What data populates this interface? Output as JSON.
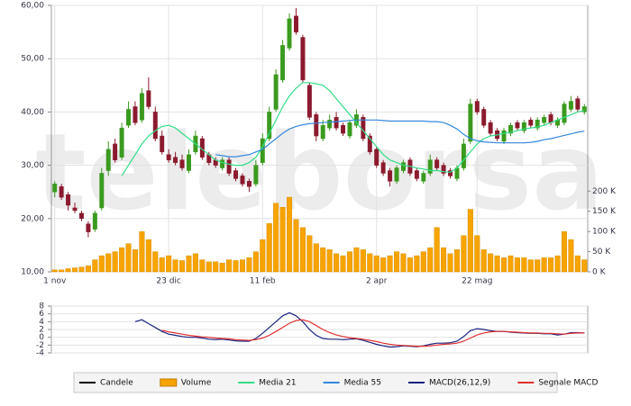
{
  "chart_data": [
    {
      "type": "candlestick",
      "watermark": "teleborsa",
      "grid": true,
      "categories": [
        "1 nov",
        null,
        null,
        null,
        null,
        null,
        null,
        null,
        null,
        null,
        null,
        null,
        null,
        null,
        null,
        null,
        null,
        "23 dic",
        null,
        null,
        null,
        null,
        null,
        null,
        null,
        null,
        null,
        null,
        null,
        null,
        null,
        "11 feb",
        null,
        null,
        null,
        null,
        null,
        null,
        null,
        null,
        null,
        null,
        null,
        null,
        null,
        null,
        null,
        null,
        "2 apr",
        null,
        null,
        null,
        null,
        null,
        null,
        null,
        null,
        null,
        null,
        null,
        null,
        null,
        null,
        "22 mag",
        null,
        null,
        null,
        null,
        null,
        null,
        null,
        null,
        null,
        null,
        null,
        null,
        null,
        null,
        null,
        null
      ],
      "ylim": [
        10,
        60
      ],
      "yticks": [
        {
          "value": 10,
          "label": "10,00"
        },
        {
          "value": 20,
          "label": "20,00"
        },
        {
          "value": 30,
          "label": "30,00"
        },
        {
          "value": 40,
          "label": "40,00"
        },
        {
          "value": 50,
          "label": "50,00"
        },
        {
          "value": 60,
          "label": "60,00"
        }
      ],
      "y2lim": [
        0,
        660000
      ],
      "y2ticks": [
        {
          "value": 0,
          "label": "0 K"
        },
        {
          "value": 50000,
          "label": "50 K"
        },
        {
          "value": 100000,
          "label": "100 K"
        },
        {
          "value": 150000,
          "label": "150 K"
        },
        {
          "value": 200000,
          "label": "200 K"
        }
      ],
      "series": [
        {
          "name": "Candele",
          "type": "candlestick",
          "color": "#000000",
          "up_color": "#3a9a1e",
          "down_color": "#8b1a2e",
          "open": [
            25.0,
            26.0,
            24.5,
            22.0,
            21.0,
            19.0,
            18.0,
            22.0,
            29.0,
            34.0,
            31.5,
            37.5,
            41.0,
            38.5,
            44.0,
            40.0,
            35.5,
            32.0,
            31.5,
            31.0,
            29.0,
            32.5,
            35.0,
            32.0,
            31.0,
            29.5,
            31.0,
            29.0,
            28.0,
            27.0,
            26.5,
            30.5,
            35.0,
            40.5,
            46.0,
            52.0,
            58.0,
            54.0,
            45.0,
            39.5,
            35.0,
            37.0,
            39.0,
            37.5,
            35.5,
            37.5,
            39.0,
            35.5,
            33.0,
            30.5,
            29.0,
            27.0,
            29.0,
            31.0,
            29.0,
            27.0,
            28.5,
            31.0,
            30.0,
            29.0,
            27.5,
            29.5,
            34.5,
            42.0,
            40.5,
            38.0,
            36.5,
            34.5,
            36.0,
            38.0,
            36.5,
            38.5,
            37.0,
            38.0,
            39.5,
            37.5,
            38.0,
            40.5,
            42.5,
            40.0
          ],
          "high": [
            27.0,
            26.5,
            25.0,
            23.0,
            21.5,
            19.5,
            21.5,
            29.5,
            34.5,
            35.0,
            38.0,
            42.0,
            42.0,
            44.5,
            46.5,
            41.0,
            36.5,
            33.0,
            32.5,
            32.0,
            33.0,
            36.5,
            35.5,
            32.5,
            31.5,
            31.5,
            31.5,
            29.5,
            28.5,
            27.5,
            31.0,
            36.0,
            41.0,
            48.0,
            53.5,
            58.5,
            59.5,
            54.5,
            45.5,
            40.0,
            38.5,
            39.5,
            40.0,
            38.0,
            38.5,
            40.5,
            39.5,
            36.0,
            33.5,
            31.0,
            29.5,
            30.0,
            31.0,
            31.5,
            29.5,
            29.0,
            32.0,
            31.5,
            30.5,
            29.5,
            30.0,
            35.0,
            42.5,
            42.5,
            41.0,
            38.5,
            37.0,
            37.0,
            38.0,
            38.5,
            38.5,
            39.0,
            39.0,
            39.5,
            40.0,
            39.0,
            42.0,
            43.0,
            43.0,
            41.5
          ],
          "low": [
            24.0,
            23.5,
            21.5,
            21.0,
            19.5,
            16.5,
            17.5,
            21.5,
            28.0,
            30.5,
            31.0,
            37.0,
            37.5,
            38.0,
            40.5,
            34.5,
            32.0,
            30.5,
            30.0,
            29.0,
            28.5,
            32.0,
            31.0,
            30.0,
            29.5,
            29.0,
            28.0,
            27.0,
            26.0,
            25.0,
            26.0,
            30.0,
            34.5,
            40.0,
            45.5,
            51.5,
            54.5,
            45.5,
            38.5,
            34.5,
            34.5,
            36.5,
            36.5,
            35.5,
            35.0,
            37.0,
            34.5,
            32.0,
            29.5,
            28.0,
            26.0,
            26.5,
            28.5,
            28.0,
            27.0,
            26.5,
            28.0,
            29.0,
            28.0,
            27.5,
            27.0,
            29.0,
            34.0,
            39.5,
            37.0,
            35.5,
            34.5,
            34.0,
            35.5,
            36.5,
            36.0,
            37.0,
            36.5,
            37.5,
            37.5,
            37.0,
            37.5,
            40.0,
            40.0,
            39.5
          ],
          "close": [
            26.5,
            24.0,
            22.5,
            21.5,
            20.0,
            17.5,
            21.0,
            28.5,
            33.0,
            31.0,
            37.0,
            40.5,
            38.0,
            43.5,
            41.0,
            35.0,
            32.5,
            31.0,
            30.5,
            29.5,
            32.0,
            35.5,
            31.5,
            30.5,
            30.0,
            31.0,
            28.5,
            27.5,
            26.5,
            26.0,
            30.0,
            35.0,
            40.0,
            47.0,
            52.5,
            57.5,
            55.0,
            46.0,
            39.0,
            35.5,
            37.5,
            38.5,
            37.0,
            36.0,
            38.0,
            39.5,
            35.0,
            32.5,
            30.0,
            28.5,
            27.0,
            29.5,
            30.5,
            28.5,
            27.5,
            28.5,
            31.0,
            29.5,
            28.5,
            28.0,
            29.5,
            34.0,
            41.5,
            40.0,
            37.5,
            36.0,
            35.0,
            36.5,
            37.5,
            37.0,
            38.0,
            37.5,
            38.5,
            39.0,
            38.0,
            38.5,
            41.5,
            42.0,
            40.5,
            41.0
          ]
        },
        {
          "name": "Volume",
          "type": "bar",
          "axis": "y2",
          "color": "#f7a400",
          "values": [
            5000,
            5000,
            8000,
            10000,
            12000,
            15000,
            30000,
            40000,
            45000,
            50000,
            60000,
            70000,
            55000,
            100000,
            80000,
            50000,
            35000,
            40000,
            30000,
            28000,
            40000,
            45000,
            30000,
            25000,
            25000,
            22000,
            30000,
            28000,
            30000,
            35000,
            50000,
            80000,
            120000,
            170000,
            160000,
            185000,
            130000,
            110000,
            90000,
            70000,
            60000,
            55000,
            45000,
            40000,
            50000,
            60000,
            55000,
            45000,
            40000,
            35000,
            40000,
            50000,
            45000,
            35000,
            40000,
            50000,
            60000,
            110000,
            60000,
            45000,
            55000,
            90000,
            155000,
            90000,
            55000,
            45000,
            40000,
            35000,
            40000,
            35000,
            35000,
            30000,
            30000,
            35000,
            35000,
            40000,
            100000,
            80000,
            40000,
            30000
          ]
        },
        {
          "name": "Media 21",
          "type": "line",
          "color": "#33dd88",
          "values": [
            null,
            null,
            null,
            null,
            null,
            null,
            null,
            null,
            null,
            null,
            28.0,
            30.0,
            32.0,
            34.0,
            35.5,
            36.5,
            37.3,
            37.5,
            37.0,
            36.0,
            35.0,
            34.0,
            33.0,
            32.0,
            31.0,
            30.5,
            30.2,
            30.0,
            30.0,
            30.5,
            31.5,
            33.5,
            36.0,
            38.5,
            41.0,
            43.0,
            44.5,
            45.5,
            45.5,
            45.3,
            45.0,
            44.0,
            42.5,
            41.0,
            39.5,
            38.0,
            36.5,
            35.0,
            33.5,
            32.0,
            31.0,
            30.5,
            30.0,
            29.8,
            29.5,
            29.3,
            29.0,
            29.0,
            28.8,
            28.7,
            29.5,
            31.0,
            32.5,
            34.0,
            35.0,
            35.5,
            35.7,
            36.0,
            36.2,
            36.5,
            36.8,
            37.0,
            37.2,
            37.5,
            38.0,
            38.5,
            39.0,
            39.5,
            40.0,
            40.3
          ]
        },
        {
          "name": "Media 55",
          "type": "line",
          "color": "#3388dd",
          "values": [
            null,
            null,
            null,
            null,
            null,
            null,
            null,
            null,
            null,
            null,
            null,
            null,
            null,
            null,
            null,
            null,
            null,
            null,
            null,
            null,
            null,
            null,
            null,
            null,
            32.0,
            31.8,
            31.6,
            31.6,
            31.8,
            32.0,
            32.5,
            33.0,
            34.0,
            35.0,
            36.0,
            36.8,
            37.3,
            37.6,
            37.8,
            37.9,
            38.0,
            38.1,
            38.2,
            38.3,
            38.4,
            38.5,
            38.5,
            38.5,
            38.5,
            38.4,
            38.3,
            38.3,
            38.3,
            38.3,
            38.3,
            38.3,
            38.2,
            38.2,
            38.0,
            37.5,
            36.8,
            35.8,
            35.0,
            34.6,
            34.4,
            34.3,
            34.2,
            34.2,
            34.2,
            34.2,
            34.2,
            34.3,
            34.5,
            34.8,
            35.0,
            35.3,
            35.6,
            35.9,
            36.2,
            36.4
          ]
        }
      ]
    },
    {
      "type": "line",
      "grid": true,
      "ylim": [
        -4,
        8
      ],
      "yticks": [
        -4,
        -2,
        0,
        2,
        4,
        6,
        8
      ],
      "series": [
        {
          "name": "MACD(26,12,9)",
          "type": "line",
          "color": "#1a237e",
          "values": [
            null,
            null,
            null,
            null,
            null,
            null,
            null,
            null,
            null,
            null,
            null,
            null,
            4.0,
            4.5,
            3.5,
            2.5,
            1.5,
            0.8,
            0.5,
            0.2,
            0.0,
            0.0,
            -0.2,
            -0.5,
            -0.6,
            -0.5,
            -0.7,
            -0.9,
            -1.0,
            -1.0,
            -0.3,
            1.0,
            2.5,
            4.0,
            5.5,
            6.3,
            5.5,
            4.0,
            2.0,
            0.5,
            -0.3,
            -0.5,
            -0.5,
            -0.6,
            -0.5,
            -0.4,
            -0.8,
            -1.3,
            -1.8,
            -2.2,
            -2.5,
            -2.4,
            -2.2,
            -2.3,
            -2.4,
            -2.2,
            -1.8,
            -1.5,
            -1.5,
            -1.4,
            -1.0,
            0.2,
            1.7,
            2.2,
            2.0,
            1.7,
            1.5,
            1.5,
            1.3,
            1.2,
            1.1,
            1.0,
            1.0,
            0.9,
            0.9,
            0.6,
            0.8,
            1.2,
            1.2,
            1.1
          ]
        },
        {
          "name": "Segnale MACD",
          "type": "line",
          "color": "#e03030",
          "values": [
            null,
            null,
            null,
            null,
            null,
            null,
            null,
            null,
            null,
            null,
            null,
            null,
            null,
            null,
            null,
            null,
            1.8,
            1.4,
            1.1,
            0.8,
            0.5,
            0.3,
            0.1,
            0.0,
            -0.2,
            -0.3,
            -0.4,
            -0.6,
            -0.7,
            -0.8,
            -0.6,
            -0.2,
            0.5,
            1.5,
            2.5,
            3.6,
            4.3,
            4.5,
            4.0,
            3.0,
            2.0,
            1.2,
            0.6,
            0.2,
            -0.1,
            -0.3,
            -0.5,
            -0.8,
            -1.1,
            -1.5,
            -1.8,
            -2.0,
            -2.1,
            -2.2,
            -2.3,
            -2.3,
            -2.2,
            -2.0,
            -1.8,
            -1.7,
            -1.5,
            -1.0,
            -0.2,
            0.6,
            1.1,
            1.4,
            1.5,
            1.5,
            1.4,
            1.3,
            1.2,
            1.1,
            1.1,
            1.0,
            1.0,
            0.9,
            0.8,
            1.0,
            1.1,
            1.1
          ]
        }
      ]
    }
  ]
}
